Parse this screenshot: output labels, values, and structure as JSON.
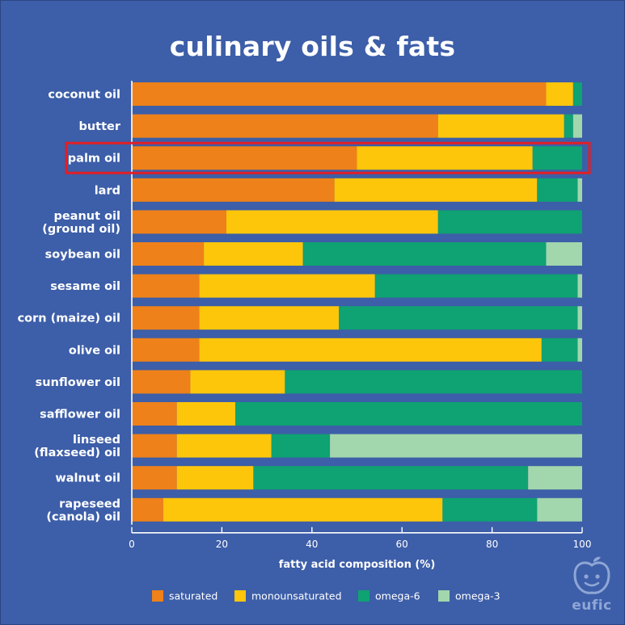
{
  "chart_data": {
    "type": "bar",
    "orientation": "horizontal",
    "stacked": true,
    "title": "culinary oils & fats",
    "xlabel": "fatty acid composition (%)",
    "ylabel": "",
    "xlim": [
      0,
      100
    ],
    "xticks": [
      0,
      20,
      40,
      60,
      80,
      100
    ],
    "grid": false,
    "legend_position": "bottom",
    "categories": [
      [
        "coconut oil"
      ],
      [
        "butter"
      ],
      [
        "palm oil"
      ],
      [
        "lard"
      ],
      [
        "peanut oil",
        "(ground oil)"
      ],
      [
        "soybean oil"
      ],
      [
        "sesame oil"
      ],
      [
        "corn (maize) oil"
      ],
      [
        "olive oil"
      ],
      [
        "sunflower oil"
      ],
      [
        "safflower oil"
      ],
      [
        "linseed",
        "(flaxseed) oil"
      ],
      [
        "walnut oil"
      ],
      [
        "rapeseed",
        "(canola) oil"
      ]
    ],
    "series": [
      {
        "name": "saturated",
        "color": "#ee8119",
        "values": [
          92,
          68,
          50,
          45,
          21,
          16,
          15,
          15,
          15,
          13,
          10,
          10,
          10,
          7
        ]
      },
      {
        "name": "monounsaturated",
        "color": "#fdc60b",
        "values": [
          6,
          28,
          39,
          45,
          47,
          22,
          39,
          31,
          76,
          21,
          13,
          21,
          17,
          62
        ]
      },
      {
        "name": "omega-6",
        "color": "#0fa272",
        "values": [
          2,
          2,
          11,
          9,
          32,
          54,
          45,
          53,
          8,
          66,
          77,
          13,
          61,
          21
        ]
      },
      {
        "name": "omega-3",
        "color": "#a2d6ad",
        "values": [
          0,
          2,
          0,
          1,
          0,
          8,
          1,
          1,
          1,
          0,
          0,
          56,
          12,
          10
        ]
      }
    ],
    "highlight": {
      "category": "palm oil",
      "color": "#e31e24"
    }
  },
  "logo": {
    "text": "eufic",
    "color": "#8fa6d6"
  }
}
